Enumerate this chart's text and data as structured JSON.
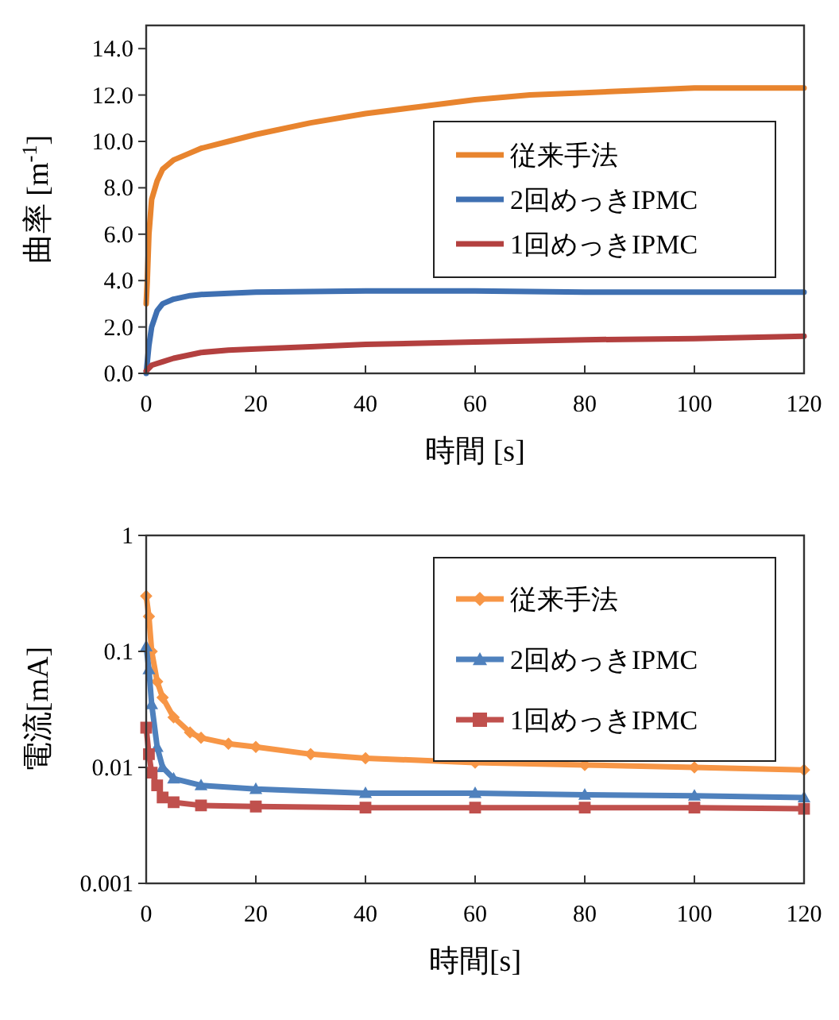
{
  "chart_data": [
    {
      "type": "line",
      "xlabel": "時間 [s]",
      "ylabel": "曲率 [m$^{-1}$]",
      "xlim": [
        0,
        120
      ],
      "xticks": [
        0,
        20,
        40,
        60,
        80,
        100,
        120
      ],
      "ylim": [
        0,
        15
      ],
      "yticks": [
        {
          "value": 0,
          "label": "0.0"
        },
        {
          "value": 2,
          "label": "2.0"
        },
        {
          "value": 4,
          "label": "4.0"
        },
        {
          "value": 6,
          "label": "6.0"
        },
        {
          "value": 8,
          "label": "8.0"
        },
        {
          "value": 10,
          "label": "10.0"
        },
        {
          "value": 12,
          "label": "12.0"
        },
        {
          "value": 14,
          "label": "14.0"
        }
      ],
      "legend": "right",
      "series": [
        {
          "name": "従来手法",
          "color": "#e8842e",
          "x": [
            0,
            0.2,
            0.5,
            1,
            2,
            3,
            5,
            8,
            10,
            15,
            20,
            30,
            40,
            50,
            60,
            70,
            80,
            90,
            100,
            110,
            120
          ],
          "values": [
            3.0,
            4.0,
            6.0,
            7.5,
            8.3,
            8.8,
            9.2,
            9.5,
            9.7,
            10.0,
            10.3,
            10.8,
            11.2,
            11.5,
            11.8,
            12.0,
            12.1,
            12.2,
            12.3,
            12.3,
            12.3
          ]
        },
        {
          "name": "2回めっきIPMC",
          "color": "#3f70b2",
          "x": [
            0,
            0.5,
            1,
            2,
            3,
            5,
            8,
            10,
            15,
            20,
            40,
            60,
            80,
            100,
            120
          ],
          "values": [
            0,
            1.2,
            2.0,
            2.7,
            3.0,
            3.2,
            3.35,
            3.4,
            3.45,
            3.5,
            3.55,
            3.55,
            3.5,
            3.5,
            3.5
          ]
        },
        {
          "name": "1回めっきIPMC",
          "color": "#b3403f",
          "x": [
            0,
            1,
            3,
            5,
            10,
            15,
            20,
            30,
            40,
            60,
            80,
            100,
            120
          ],
          "values": [
            0.1,
            0.35,
            0.5,
            0.65,
            0.9,
            1.0,
            1.05,
            1.15,
            1.25,
            1.35,
            1.45,
            1.5,
            1.6
          ]
        }
      ]
    },
    {
      "type": "line",
      "xlabel": "時間[s]",
      "ylabel": "電流[mA]",
      "log": true,
      "xlim": [
        0,
        120
      ],
      "xticks": [
        0,
        20,
        40,
        60,
        80,
        100,
        120
      ],
      "ylim": [
        0.001,
        1
      ],
      "yticks": [
        0.001,
        0.01,
        0.1,
        1
      ],
      "legend": "top right",
      "series": [
        {
          "name": "従来手法",
          "color": "#f79646",
          "marker": "diamond",
          "x": [
            0,
            0.5,
            1,
            2,
            3,
            5,
            8,
            10,
            15,
            20,
            30,
            40,
            60,
            80,
            100,
            120
          ],
          "values": [
            0.3,
            0.2,
            0.1,
            0.055,
            0.04,
            0.027,
            0.02,
            0.018,
            0.016,
            0.015,
            0.013,
            0.012,
            0.011,
            0.0105,
            0.01,
            0.0095
          ]
        },
        {
          "name": "2回めっきIPMC",
          "color": "#4f81bd",
          "marker": "triangle",
          "x": [
            0,
            0.5,
            1,
            2,
            3,
            5,
            10,
            20,
            40,
            60,
            80,
            100,
            120
          ],
          "values": [
            0.11,
            0.07,
            0.035,
            0.015,
            0.01,
            0.008,
            0.007,
            0.0065,
            0.006,
            0.006,
            0.0058,
            0.0057,
            0.0055
          ]
        },
        {
          "name": "1回めっきIPMC",
          "color": "#c0504d",
          "marker": "square",
          "x": [
            0,
            0.5,
            1,
            2,
            3,
            5,
            10,
            20,
            40,
            60,
            80,
            100,
            120
          ],
          "values": [
            0.022,
            0.013,
            0.009,
            0.007,
            0.0055,
            0.005,
            0.0047,
            0.0046,
            0.0045,
            0.0045,
            0.0045,
            0.0045,
            0.0044
          ]
        }
      ]
    }
  ]
}
